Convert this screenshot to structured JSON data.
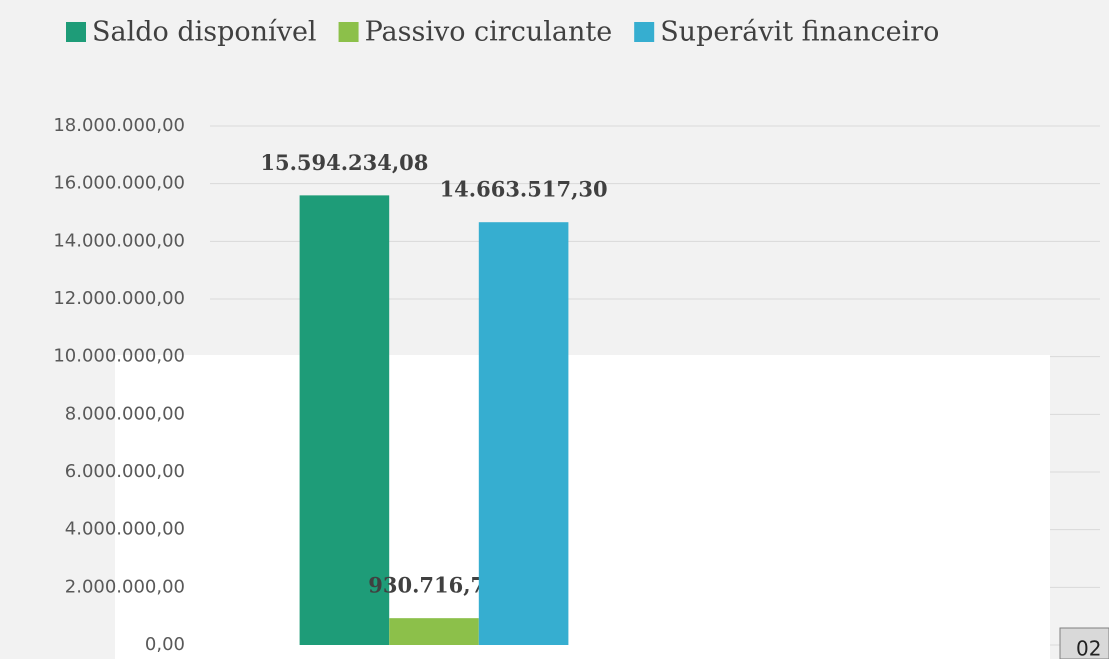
{
  "chart_data": {
    "type": "bar",
    "categories": [
      null
    ],
    "series": [
      {
        "name": "Saldo disponível",
        "color": "#1e9c78",
        "values": [
          15594234.08
        ],
        "value_labels": [
          "15.594.234,08"
        ]
      },
      {
        "name": "Passivo circulante",
        "color": "#8cc04a",
        "values": [
          930716.78
        ],
        "value_labels": [
          "930.716,78"
        ]
      },
      {
        "name": "Superávit financeiro",
        "color": "#36aed0",
        "values": [
          14663517.3
        ],
        "value_labels": [
          "14.663.517,30"
        ]
      }
    ],
    "ylim": [
      0,
      18000000
    ],
    "yticks": [
      {
        "value": 0,
        "label": "0,00"
      },
      {
        "value": 2000000,
        "label": "2.000.000,00"
      },
      {
        "value": 4000000,
        "label": "4.000.000,00"
      },
      {
        "value": 6000000,
        "label": "6.000.000,00"
      },
      {
        "value": 8000000,
        "label": "8.000.000,00"
      },
      {
        "value": 10000000,
        "label": "10.000.000,00"
      },
      {
        "value": 12000000,
        "label": "12.000.000,00"
      },
      {
        "value": 14000000,
        "label": "14.000.000,00"
      },
      {
        "value": 16000000,
        "label": "16.000.000,00"
      },
      {
        "value": 18000000,
        "label": "18.000.000,00"
      }
    ],
    "grid": true,
    "legend": "top",
    "annotation": "02"
  }
}
